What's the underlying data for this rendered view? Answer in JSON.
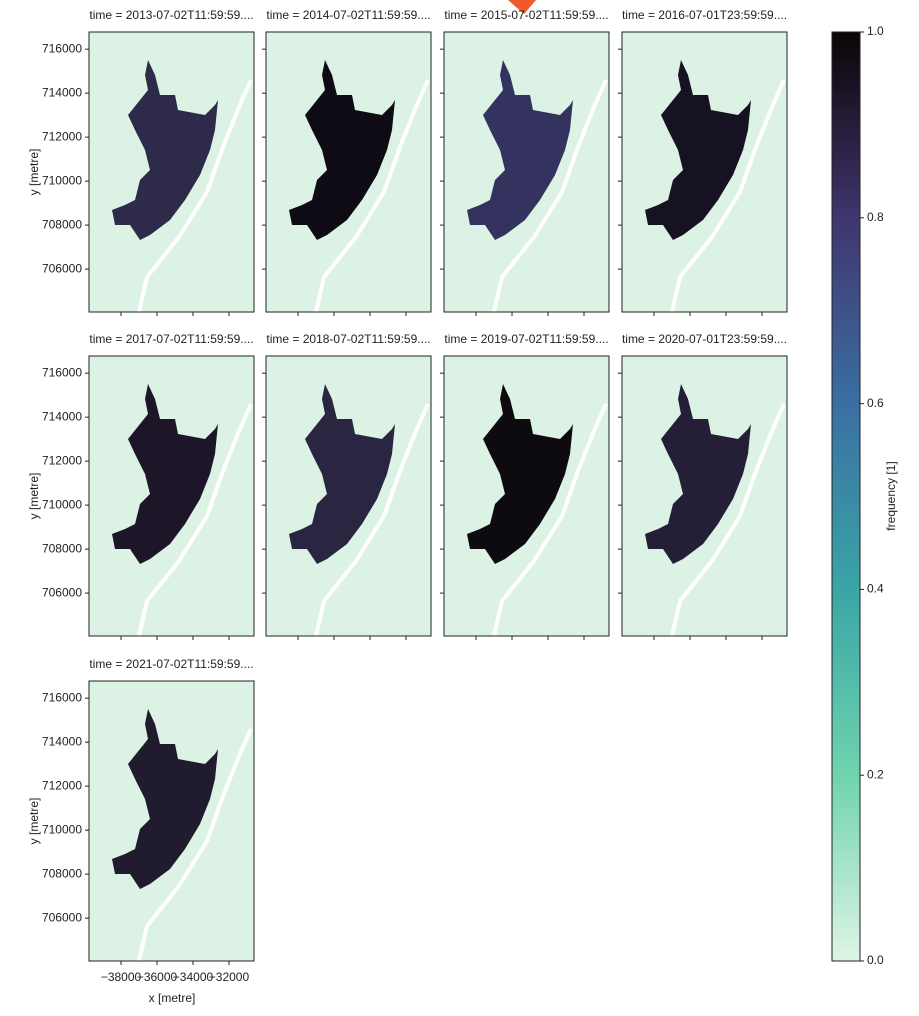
{
  "chart_data": {
    "type": "raster-facets",
    "background": "#dcf2e4",
    "panels": [
      {
        "title": "time = 2013-07-02T11:59:59....",
        "color": "#2e2a4a"
      },
      {
        "title": "time = 2014-07-02T11:59:59....",
        "color": "#0f0b14"
      },
      {
        "title": "time = 2015-07-02T11:59:59....",
        "color": "#34325e"
      },
      {
        "title": "time = 2016-07-01T23:59:59....",
        "color": "#171222"
      },
      {
        "title": "time = 2017-07-02T11:59:59....",
        "color": "#1c1628"
      },
      {
        "title": "time = 2018-07-02T11:59:59....",
        "color": "#2a2540"
      },
      {
        "title": "time = 2019-07-02T11:59:59....",
        "color": "#0d0a10"
      },
      {
        "title": "time = 2020-07-01T23:59:59....",
        "color": "#241e36"
      },
      {
        "title": "time = 2021-07-02T11:59:59....",
        "color": "#211b30"
      }
    ],
    "xlabel": "x [metre]",
    "ylabel": "y [metre]",
    "xlim": [
      -39780,
      -30610
    ],
    "xticks": [
      {
        "value": -38000,
        "label": "−38000"
      },
      {
        "value": -36000,
        "label": "−36000"
      },
      {
        "value": -34000,
        "label": "−34000"
      },
      {
        "value": -32000,
        "label": "−32000"
      }
    ],
    "ylim": [
      704050,
      716780
    ],
    "yticks": [
      706000,
      708000,
      710000,
      712000,
      714000,
      716000
    ],
    "colorbar": {
      "label": "frequency [1]",
      "lim": [
        0,
        1
      ],
      "ticks": [
        {
          "value": 0,
          "label": "0.0"
        },
        {
          "value": 0.2,
          "label": "0.2"
        },
        {
          "value": 0.4,
          "label": "0.4"
        },
        {
          "value": 0.6,
          "label": "0.6"
        },
        {
          "value": 0.8,
          "label": "0.8"
        },
        {
          "value": 1,
          "label": "1.0"
        }
      ],
      "colors": [
        "#def5e5",
        "#6fd3ae",
        "#3aa5a6",
        "#3a6fa3",
        "#40356e",
        "#0b0405"
      ]
    }
  }
}
